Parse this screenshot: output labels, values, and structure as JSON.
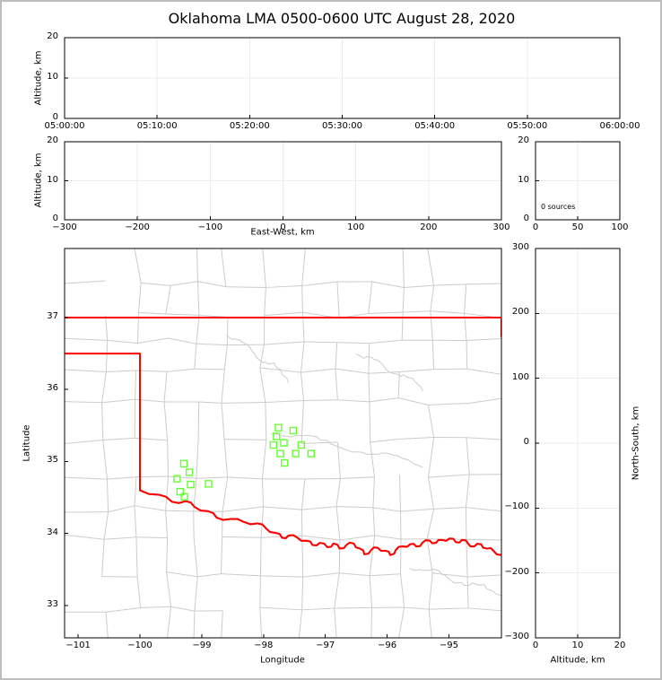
{
  "title": "Oklahoma LMA 0500-0600 UTC August 28, 2020",
  "colors": {
    "state_border_red": "#ff0000",
    "county_gray": "#cccccc",
    "source_green": "#66ff33",
    "grid_gray": "#ececec",
    "spine_black": "#000000",
    "figure_frame_gray": "#bdbdbd"
  },
  "panels": {
    "time_height": {
      "ylabel": "Altitude, km",
      "yticks": [
        "0",
        "10",
        "20"
      ],
      "xticks": [
        "05:00:00",
        "05:10:00",
        "05:20:00",
        "05:30:00",
        "05:40:00",
        "05:50:00",
        "06:00:00"
      ]
    },
    "ew_height": {
      "ylabel": "Altitude, km",
      "xlabel": "East-West, km",
      "yticks": [
        "0",
        "10",
        "20"
      ],
      "xticks": [
        "−300",
        "−200",
        "−100",
        "0",
        "100",
        "200",
        "300"
      ]
    },
    "histogram": {
      "annotation": "0 sources",
      "xticks": [
        "0",
        "50",
        "100"
      ],
      "yticks": [
        "0",
        "10",
        "20"
      ]
    },
    "map": {
      "xlabel": "Longitude",
      "ylabel": "Latitude",
      "xticks": [
        "−101",
        "−100",
        "−99",
        "−98",
        "−97",
        "−96",
        "−95"
      ],
      "yticks": [
        "37",
        "36",
        "35",
        "34",
        "33"
      ]
    },
    "ns_height": {
      "xlabel": "Altitude, km",
      "ylabel": "North-South, km",
      "xticks": [
        "0",
        "10",
        "20"
      ],
      "yticks": [
        "300",
        "200",
        "100",
        "0",
        "−100",
        "−200",
        "−300"
      ]
    }
  },
  "chart_data": {
    "type": "scatter",
    "title": "Oklahoma LMA 0500-0600 UTC August 28, 2020",
    "map_axes": {
      "xlabel": "Longitude",
      "ylabel": "Latitude",
      "xlim": [
        -101.22,
        -94.15
      ],
      "ylim": [
        32.55,
        37.96
      ]
    },
    "source_squares": {
      "marker": "open-square",
      "color": "#66ff33",
      "points_lonlat": [
        [
          -99.29,
          34.97
        ],
        [
          -99.2,
          34.85
        ],
        [
          -99.4,
          34.76
        ],
        [
          -99.18,
          34.68
        ],
        [
          -98.89,
          34.69
        ],
        [
          -99.35,
          34.58
        ],
        [
          -99.28,
          34.51
        ],
        [
          -97.76,
          35.47
        ],
        [
          -97.52,
          35.43
        ],
        [
          -97.79,
          35.35
        ],
        [
          -97.84,
          35.23
        ],
        [
          -97.67,
          35.26
        ],
        [
          -97.39,
          35.23
        ],
        [
          -97.73,
          35.11
        ],
        [
          -97.48,
          35.11
        ],
        [
          -97.23,
          35.11
        ],
        [
          -97.66,
          34.98
        ]
      ]
    },
    "histogram_annotation": "0 sources",
    "oklahoma_border": {
      "color": "#ff0000",
      "north": [
        [
          -101.22,
          37.0
        ],
        [
          -94.15,
          37.0
        ]
      ],
      "east_clip": [
        [
          -94.15,
          37.0
        ],
        [
          -94.15,
          36.74
        ]
      ],
      "panhandle": [
        [
          -101.22,
          36.5
        ],
        [
          -100.0,
          36.5
        ],
        [
          -100.0,
          34.6
        ]
      ],
      "red_river": [
        [
          -100.0,
          34.6
        ],
        [
          -99.7,
          34.54
        ],
        [
          -99.48,
          34.44
        ],
        [
          -99.26,
          34.45
        ],
        [
          -99.12,
          34.37
        ],
        [
          -98.9,
          34.31
        ],
        [
          -98.76,
          34.22
        ],
        [
          -98.54,
          34.2
        ],
        [
          -98.32,
          34.16
        ],
        [
          -98.1,
          34.14
        ],
        [
          -97.96,
          34.07
        ],
        [
          -97.81,
          34.01
        ],
        [
          -97.7,
          33.94
        ],
        [
          -97.6,
          33.97
        ],
        [
          -97.45,
          33.94
        ],
        [
          -97.31,
          33.9
        ],
        [
          -97.21,
          33.84
        ],
        [
          -97.09,
          33.87
        ],
        [
          -96.97,
          33.81
        ],
        [
          -96.87,
          33.86
        ],
        [
          -96.77,
          33.79
        ],
        [
          -96.66,
          33.84
        ],
        [
          -96.54,
          33.86
        ],
        [
          -96.44,
          33.79
        ],
        [
          -96.37,
          33.71
        ],
        [
          -96.26,
          33.77
        ],
        [
          -96.15,
          33.8
        ],
        [
          -96.03,
          33.76
        ],
        [
          -95.95,
          33.7
        ],
        [
          -95.86,
          33.77
        ],
        [
          -95.74,
          33.82
        ],
        [
          -95.63,
          33.85
        ],
        [
          -95.53,
          33.82
        ],
        [
          -95.43,
          33.87
        ],
        [
          -95.31,
          33.9
        ],
        [
          -95.21,
          33.87
        ],
        [
          -95.11,
          33.91
        ],
        [
          -94.99,
          33.93
        ],
        [
          -94.89,
          33.88
        ],
        [
          -94.79,
          33.91
        ],
        [
          -94.69,
          33.86
        ],
        [
          -94.59,
          33.82
        ],
        [
          -94.48,
          33.85
        ],
        [
          -94.38,
          33.79
        ],
        [
          -94.28,
          33.76
        ],
        [
          -94.15,
          33.7
        ]
      ]
    }
  }
}
